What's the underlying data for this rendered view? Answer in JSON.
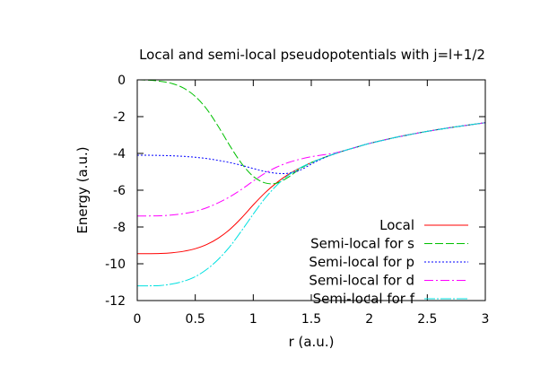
{
  "chart_data": {
    "type": "line",
    "title": "Local and semi-local pseudopotentials with j=l+1/2",
    "xlabel": "r (a.u.)",
    "ylabel": "Energy (a.u.)",
    "xlim": [
      0,
      3
    ],
    "ylim": [
      -12,
      0
    ],
    "xticks": [
      0,
      0.5,
      1,
      1.5,
      2,
      2.5,
      3
    ],
    "xtick_labels": [
      "0",
      "0.5",
      "1",
      "1.5",
      "2",
      "2.5",
      "3"
    ],
    "yticks": [
      0,
      -2,
      -4,
      -6,
      -8,
      -10,
      -12
    ],
    "ytick_labels": [
      "0",
      "-2",
      "-4",
      "-6",
      "-8",
      "-10",
      "-12"
    ],
    "grid": false,
    "legend_position": "bottom-right",
    "series": [
      {
        "name": "Local",
        "color": "#ff0000",
        "dash": "solid",
        "x": [
          0,
          0.1,
          0.2,
          0.3,
          0.4,
          0.5,
          0.6,
          0.7,
          0.8,
          0.9,
          1.0,
          1.1,
          1.2,
          1.3,
          1.4,
          1.5,
          1.6,
          1.7,
          1.8,
          1.9,
          2.0,
          2.25,
          2.5,
          2.75,
          3.0
        ],
        "values": [
          -9.45,
          -9.45,
          -9.44,
          -9.4,
          -9.32,
          -9.18,
          -8.95,
          -8.6,
          -8.12,
          -7.5,
          -6.8,
          -6.15,
          -5.6,
          -5.15,
          -4.8,
          -4.5,
          -4.25,
          -4.02,
          -3.82,
          -3.64,
          -3.46,
          -3.1,
          -2.8,
          -2.55,
          -2.33
        ]
      },
      {
        "name": "Semi-local for s",
        "color": "#00c000",
        "dash": "long-dash",
        "x": [
          0,
          0.1,
          0.2,
          0.3,
          0.4,
          0.5,
          0.6,
          0.7,
          0.8,
          0.9,
          1.0,
          1.1,
          1.2,
          1.3,
          1.4,
          1.5,
          1.6,
          1.7,
          1.8,
          1.9,
          2.0,
          2.25,
          2.5,
          2.75,
          3.0
        ],
        "values": [
          0.0,
          -0.02,
          -0.08,
          -0.2,
          -0.45,
          -0.9,
          -1.6,
          -2.55,
          -3.6,
          -4.55,
          -5.25,
          -5.6,
          -5.62,
          -5.3,
          -4.85,
          -4.5,
          -4.25,
          -4.02,
          -3.82,
          -3.64,
          -3.46,
          -3.1,
          -2.8,
          -2.55,
          -2.33
        ]
      },
      {
        "name": "Semi-local for p",
        "color": "#0000ff",
        "dash": "short-dash",
        "x": [
          0,
          0.1,
          0.2,
          0.3,
          0.4,
          0.5,
          0.6,
          0.7,
          0.8,
          0.9,
          1.0,
          1.1,
          1.2,
          1.3,
          1.4,
          1.5,
          1.6,
          1.7,
          1.8,
          1.9,
          2.0,
          2.25,
          2.5,
          2.75,
          3.0
        ],
        "values": [
          -4.1,
          -4.1,
          -4.11,
          -4.13,
          -4.16,
          -4.21,
          -4.28,
          -4.38,
          -4.5,
          -4.65,
          -4.82,
          -4.98,
          -5.08,
          -5.08,
          -4.92,
          -4.58,
          -4.27,
          -4.03,
          -3.82,
          -3.64,
          -3.46,
          -3.1,
          -2.8,
          -2.55,
          -2.33
        ]
      },
      {
        "name": "Semi-local for d",
        "color": "#ff00ff",
        "dash": "dash-dot",
        "x": [
          0,
          0.1,
          0.2,
          0.3,
          0.4,
          0.5,
          0.6,
          0.7,
          0.8,
          0.9,
          1.0,
          1.1,
          1.2,
          1.3,
          1.4,
          1.5,
          1.6,
          1.7,
          1.8,
          1.9,
          2.0,
          2.25,
          2.5,
          2.75,
          3.0
        ],
        "values": [
          -7.4,
          -7.4,
          -7.39,
          -7.35,
          -7.27,
          -7.15,
          -6.95,
          -6.68,
          -6.35,
          -5.95,
          -5.5,
          -5.08,
          -4.75,
          -4.5,
          -4.32,
          -4.18,
          -4.08,
          -3.98,
          -3.82,
          -3.64,
          -3.46,
          -3.1,
          -2.8,
          -2.55,
          -2.33
        ]
      },
      {
        "name": "Semi-local for f",
        "color": "#00e0e0",
        "dash": "long-dot",
        "x": [
          0,
          0.1,
          0.2,
          0.3,
          0.4,
          0.5,
          0.6,
          0.7,
          0.8,
          0.9,
          1.0,
          1.1,
          1.2,
          1.3,
          1.4,
          1.5,
          1.6,
          1.7,
          1.8,
          1.9,
          2.0,
          2.25,
          2.5,
          2.75,
          3.0
        ],
        "values": [
          -11.2,
          -11.2,
          -11.18,
          -11.1,
          -10.95,
          -10.7,
          -10.3,
          -9.75,
          -9.05,
          -8.2,
          -7.3,
          -6.45,
          -5.75,
          -5.2,
          -4.8,
          -4.5,
          -4.25,
          -4.02,
          -3.82,
          -3.64,
          -3.46,
          -3.1,
          -2.8,
          -2.55,
          -2.33
        ]
      }
    ]
  }
}
